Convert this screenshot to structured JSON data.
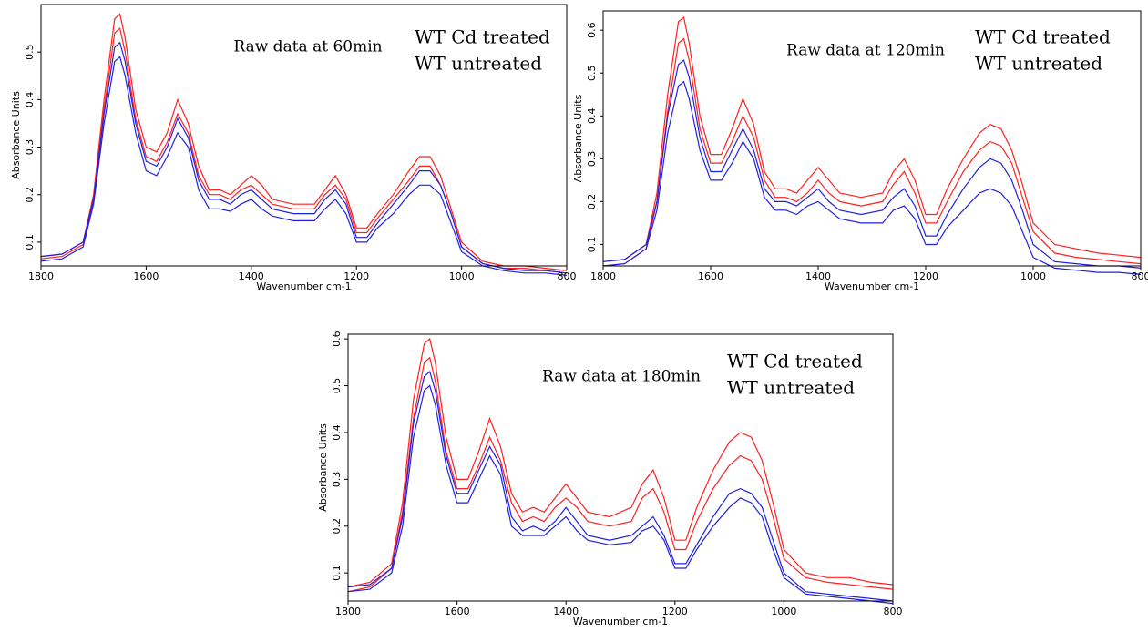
{
  "chart_data": [
    {
      "type": "line",
      "annotation": "Raw data at 60min",
      "xlabel": "Wavenumber cm-1",
      "ylabel": "Absorbance Units",
      "x": [
        1800,
        1760,
        1720,
        1700,
        1680,
        1660,
        1650,
        1640,
        1620,
        1600,
        1580,
        1560,
        1540,
        1520,
        1500,
        1480,
        1460,
        1440,
        1420,
        1400,
        1380,
        1360,
        1320,
        1280,
        1260,
        1240,
        1220,
        1200,
        1180,
        1160,
        1130,
        1100,
        1080,
        1060,
        1040,
        1020,
        1000,
        960,
        920,
        880,
        840,
        800
      ],
      "xlim": [
        1800,
        800
      ],
      "xticks": [
        1800,
        1600,
        1400,
        1200,
        1000,
        800
      ],
      "ylim": [
        0.05,
        0.6
      ],
      "yticks": [
        0.1,
        0.2,
        0.3,
        0.4,
        0.5
      ],
      "series": [
        {
          "name": "WT Cd treated",
          "color": "#ff2020",
          "values": [
            0.07,
            0.075,
            0.1,
            0.2,
            0.4,
            0.57,
            0.58,
            0.53,
            0.38,
            0.3,
            0.29,
            0.33,
            0.4,
            0.35,
            0.26,
            0.21,
            0.21,
            0.2,
            0.22,
            0.24,
            0.22,
            0.19,
            0.18,
            0.18,
            0.21,
            0.24,
            0.2,
            0.13,
            0.13,
            0.16,
            0.2,
            0.25,
            0.28,
            0.28,
            0.24,
            0.17,
            0.1,
            0.06,
            0.05,
            0.05,
            0.045,
            0.04
          ]
        },
        {
          "color": "#ff2020",
          "values": [
            0.065,
            0.07,
            0.095,
            0.19,
            0.38,
            0.54,
            0.55,
            0.5,
            0.36,
            0.28,
            0.27,
            0.31,
            0.37,
            0.33,
            0.24,
            0.2,
            0.2,
            0.19,
            0.21,
            0.22,
            0.2,
            0.18,
            0.17,
            0.17,
            0.2,
            0.22,
            0.19,
            0.12,
            0.12,
            0.15,
            0.19,
            0.23,
            0.26,
            0.26,
            0.22,
            0.16,
            0.09,
            0.055,
            0.045,
            0.045,
            0.04,
            0.035
          ]
        },
        {
          "name": "WT untreated",
          "color": "#2020e0",
          "values": [
            0.07,
            0.075,
            0.1,
            0.19,
            0.37,
            0.51,
            0.52,
            0.48,
            0.35,
            0.27,
            0.26,
            0.3,
            0.36,
            0.32,
            0.23,
            0.19,
            0.19,
            0.18,
            0.2,
            0.21,
            0.19,
            0.17,
            0.16,
            0.16,
            0.19,
            0.21,
            0.18,
            0.11,
            0.11,
            0.14,
            0.18,
            0.22,
            0.25,
            0.25,
            0.22,
            0.16,
            0.09,
            0.055,
            0.045,
            0.04,
            0.04,
            0.035
          ]
        },
        {
          "color": "#2020e0",
          "values": [
            0.06,
            0.065,
            0.09,
            0.18,
            0.35,
            0.48,
            0.49,
            0.45,
            0.33,
            0.25,
            0.24,
            0.28,
            0.33,
            0.3,
            0.21,
            0.17,
            0.17,
            0.165,
            0.18,
            0.19,
            0.17,
            0.155,
            0.145,
            0.145,
            0.17,
            0.19,
            0.16,
            0.1,
            0.1,
            0.13,
            0.16,
            0.2,
            0.22,
            0.22,
            0.2,
            0.14,
            0.08,
            0.05,
            0.04,
            0.035,
            0.035,
            0.03
          ]
        }
      ]
    },
    {
      "type": "line",
      "annotation": "Raw data at 120min",
      "xlabel": "Wavenumber cm-1",
      "ylabel": "Absorbance Units",
      "x": [
        1800,
        1760,
        1720,
        1700,
        1680,
        1660,
        1650,
        1640,
        1620,
        1600,
        1580,
        1560,
        1540,
        1520,
        1500,
        1480,
        1460,
        1440,
        1420,
        1400,
        1380,
        1360,
        1320,
        1280,
        1260,
        1240,
        1220,
        1200,
        1180,
        1160,
        1130,
        1100,
        1080,
        1060,
        1040,
        1020,
        1000,
        960,
        920,
        880,
        840,
        800
      ],
      "xlim": [
        1800,
        800
      ],
      "xticks": [
        1800,
        1600,
        1400,
        1200,
        1000,
        800
      ],
      "ylim": [
        0.05,
        0.645
      ],
      "yticks": [
        0.1,
        0.2,
        0.3,
        0.4,
        0.5,
        0.6
      ],
      "series": [
        {
          "name": "WT Cd treated",
          "color": "#ff2020",
          "values": [
            0.06,
            0.065,
            0.1,
            0.22,
            0.45,
            0.62,
            0.63,
            0.57,
            0.4,
            0.31,
            0.31,
            0.37,
            0.44,
            0.38,
            0.27,
            0.23,
            0.23,
            0.22,
            0.25,
            0.28,
            0.25,
            0.22,
            0.21,
            0.22,
            0.27,
            0.3,
            0.25,
            0.17,
            0.17,
            0.23,
            0.3,
            0.36,
            0.38,
            0.37,
            0.32,
            0.24,
            0.15,
            0.1,
            0.09,
            0.08,
            0.075,
            0.07
          ]
        },
        {
          "color": "#ff2020",
          "values": [
            0.05,
            0.055,
            0.09,
            0.2,
            0.41,
            0.57,
            0.58,
            0.53,
            0.37,
            0.29,
            0.29,
            0.34,
            0.4,
            0.35,
            0.25,
            0.21,
            0.21,
            0.2,
            0.22,
            0.25,
            0.22,
            0.2,
            0.19,
            0.2,
            0.24,
            0.27,
            0.22,
            0.15,
            0.15,
            0.2,
            0.27,
            0.32,
            0.34,
            0.33,
            0.29,
            0.21,
            0.13,
            0.08,
            0.07,
            0.065,
            0.06,
            0.055
          ]
        },
        {
          "name": "WT untreated",
          "color": "#2020e0",
          "values": [
            0.06,
            0.065,
            0.1,
            0.2,
            0.4,
            0.52,
            0.53,
            0.49,
            0.35,
            0.27,
            0.27,
            0.32,
            0.37,
            0.32,
            0.23,
            0.2,
            0.2,
            0.19,
            0.21,
            0.23,
            0.2,
            0.18,
            0.17,
            0.18,
            0.21,
            0.23,
            0.19,
            0.12,
            0.12,
            0.17,
            0.23,
            0.28,
            0.3,
            0.29,
            0.25,
            0.18,
            0.1,
            0.06,
            0.055,
            0.05,
            0.05,
            0.045
          ]
        },
        {
          "color": "#2020e0",
          "values": [
            0.05,
            0.055,
            0.09,
            0.18,
            0.36,
            0.47,
            0.48,
            0.44,
            0.32,
            0.25,
            0.25,
            0.29,
            0.34,
            0.3,
            0.21,
            0.18,
            0.18,
            0.17,
            0.19,
            0.2,
            0.18,
            0.16,
            0.15,
            0.15,
            0.18,
            0.19,
            0.16,
            0.1,
            0.1,
            0.14,
            0.18,
            0.22,
            0.23,
            0.22,
            0.19,
            0.13,
            0.07,
            0.045,
            0.04,
            0.035,
            0.035,
            0.03
          ]
        }
      ]
    },
    {
      "type": "line",
      "annotation": "Raw data at 180min",
      "xlabel": "Wavenumber cm-1",
      "ylabel": "Absorbance Units",
      "x": [
        1800,
        1760,
        1720,
        1700,
        1680,
        1660,
        1650,
        1640,
        1620,
        1600,
        1580,
        1560,
        1540,
        1520,
        1500,
        1480,
        1460,
        1440,
        1420,
        1400,
        1380,
        1360,
        1320,
        1280,
        1260,
        1240,
        1220,
        1200,
        1180,
        1160,
        1130,
        1100,
        1080,
        1060,
        1040,
        1020,
        1000,
        960,
        920,
        880,
        840,
        800
      ],
      "xlim": [
        1800,
        800
      ],
      "xticks": [
        1800,
        1600,
        1400,
        1200,
        1000,
        800
      ],
      "ylim": [
        0.04,
        0.61
      ],
      "yticks": [
        0.1,
        0.2,
        0.3,
        0.4,
        0.5,
        0.6
      ],
      "series": [
        {
          "name": "WT Cd treated",
          "color": "#ff2020",
          "values": [
            0.07,
            0.08,
            0.12,
            0.25,
            0.47,
            0.59,
            0.6,
            0.55,
            0.39,
            0.3,
            0.3,
            0.36,
            0.43,
            0.37,
            0.27,
            0.23,
            0.24,
            0.23,
            0.26,
            0.29,
            0.26,
            0.23,
            0.22,
            0.24,
            0.29,
            0.32,
            0.26,
            0.17,
            0.17,
            0.24,
            0.32,
            0.38,
            0.4,
            0.39,
            0.34,
            0.25,
            0.15,
            0.1,
            0.09,
            0.09,
            0.08,
            0.075
          ]
        },
        {
          "color": "#ff2020",
          "values": [
            0.06,
            0.07,
            0.11,
            0.23,
            0.43,
            0.55,
            0.56,
            0.51,
            0.36,
            0.28,
            0.28,
            0.33,
            0.39,
            0.34,
            0.25,
            0.21,
            0.22,
            0.21,
            0.24,
            0.26,
            0.24,
            0.21,
            0.2,
            0.21,
            0.26,
            0.28,
            0.23,
            0.15,
            0.15,
            0.21,
            0.28,
            0.33,
            0.35,
            0.34,
            0.3,
            0.22,
            0.13,
            0.09,
            0.08,
            0.075,
            0.07,
            0.065
          ]
        },
        {
          "name": "WT untreated",
          "color": "#2020e0",
          "values": [
            0.07,
            0.075,
            0.11,
            0.22,
            0.42,
            0.52,
            0.53,
            0.49,
            0.35,
            0.27,
            0.27,
            0.32,
            0.37,
            0.33,
            0.22,
            0.19,
            0.2,
            0.19,
            0.21,
            0.24,
            0.21,
            0.18,
            0.17,
            0.18,
            0.2,
            0.22,
            0.18,
            0.12,
            0.12,
            0.16,
            0.22,
            0.27,
            0.28,
            0.27,
            0.24,
            0.17,
            0.1,
            0.06,
            0.055,
            0.05,
            0.045,
            0.04
          ]
        },
        {
          "color": "#2020e0",
          "values": [
            0.06,
            0.065,
            0.1,
            0.2,
            0.39,
            0.49,
            0.5,
            0.46,
            0.33,
            0.25,
            0.25,
            0.3,
            0.35,
            0.31,
            0.2,
            0.18,
            0.18,
            0.18,
            0.2,
            0.22,
            0.19,
            0.17,
            0.16,
            0.165,
            0.19,
            0.2,
            0.17,
            0.11,
            0.11,
            0.15,
            0.2,
            0.24,
            0.26,
            0.25,
            0.22,
            0.15,
            0.09,
            0.055,
            0.05,
            0.045,
            0.04,
            0.035
          ]
        }
      ]
    }
  ]
}
